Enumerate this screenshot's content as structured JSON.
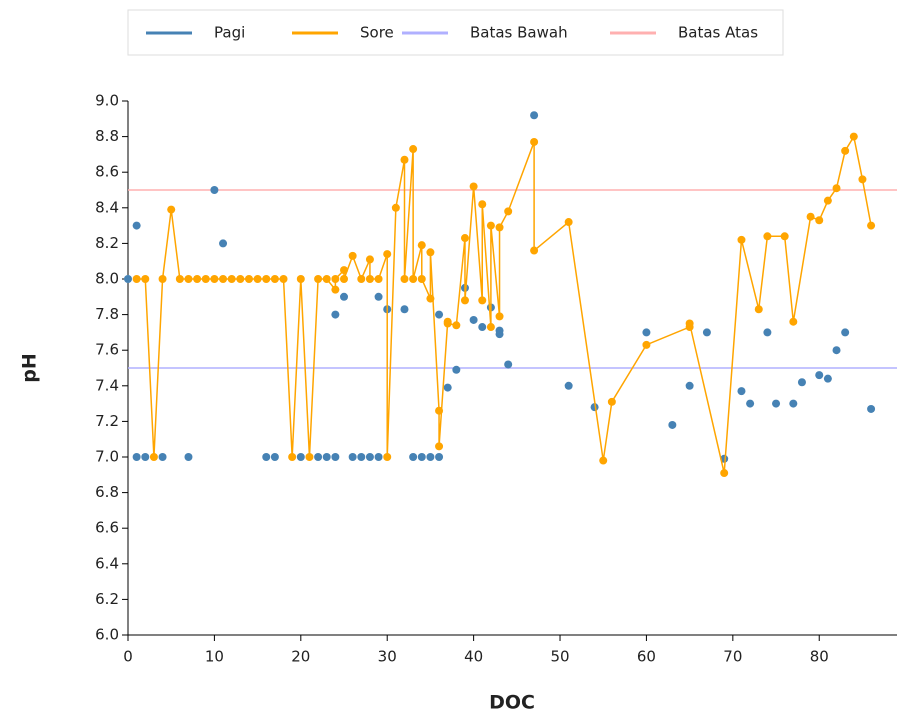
{
  "chart_data": {
    "type": "scatter",
    "x_label": "DOC",
    "y_label": "pH",
    "xlim": [
      0,
      89
    ],
    "ylim": [
      6.0,
      9.0
    ],
    "xticks": [
      0,
      10,
      20,
      30,
      40,
      50,
      60,
      70,
      80
    ],
    "yticks": [
      {
        "value": 6.0,
        "label": "6.0"
      },
      {
        "value": 6.2,
        "label": "6.2"
      },
      {
        "value": 6.4,
        "label": "6.4"
      },
      {
        "value": 6.6,
        "label": "6.6"
      },
      {
        "value": 6.8,
        "label": "6.8"
      },
      {
        "value": 7.0,
        "label": "7.0"
      },
      {
        "value": 7.2,
        "label": "7.2"
      },
      {
        "value": 7.4,
        "label": "7.4"
      },
      {
        "value": 7.6,
        "label": "7.6"
      },
      {
        "value": 7.8,
        "label": "7.8"
      },
      {
        "value": 8.0,
        "label": "8.0"
      },
      {
        "value": 8.2,
        "label": "8.2"
      },
      {
        "value": 8.4,
        "label": "8.4"
      },
      {
        "value": 8.6,
        "label": "8.6"
      },
      {
        "value": 8.8,
        "label": "8.8"
      },
      {
        "value": 9.0,
        "label": "9.0"
      }
    ],
    "grid": false,
    "legend": "top",
    "series": [
      {
        "name": "Pagi",
        "color": "#4682b4",
        "line": false,
        "x": [
          0,
          1,
          1,
          2,
          4,
          7,
          10,
          11,
          16,
          17,
          20,
          22,
          23,
          24,
          24,
          25,
          26,
          27,
          28,
          29,
          29,
          30,
          32,
          33,
          34,
          35,
          36,
          36,
          37,
          38,
          39,
          40,
          41,
          42,
          43,
          43,
          44,
          47,
          51,
          54,
          60,
          63,
          65,
          67,
          69,
          71,
          72,
          74,
          75,
          77,
          78,
          80,
          81,
          82,
          83,
          86
        ],
        "values": [
          8.0,
          8.3,
          7.0,
          7.0,
          7.0,
          7.0,
          8.5,
          8.2,
          7.0,
          7.0,
          7.0,
          7.0,
          7.0,
          7.0,
          7.8,
          7.9,
          7.0,
          7.0,
          7.0,
          7.0,
          7.9,
          7.83,
          7.83,
          7.0,
          7.0,
          7.0,
          7.0,
          7.8,
          7.39,
          7.49,
          7.95,
          7.77,
          7.73,
          7.84,
          7.69,
          7.71,
          7.52,
          8.92,
          7.4,
          7.28,
          7.7,
          7.18,
          7.4,
          7.7,
          6.99,
          7.37,
          7.3,
          7.7,
          7.3,
          7.3,
          7.42,
          7.46,
          7.44,
          7.6,
          7.7,
          7.27
        ]
      },
      {
        "name": "Sore",
        "color": "#ffa500",
        "line": true,
        "x": [
          1,
          2,
          3,
          4,
          5,
          6,
          7,
          8,
          9,
          10,
          11,
          12,
          13,
          14,
          15,
          16,
          17,
          18,
          19,
          20,
          21,
          22,
          23,
          24,
          24,
          25,
          25,
          26,
          27,
          28,
          28,
          29,
          30,
          30,
          31,
          32,
          32,
          33,
          33,
          34,
          34,
          35,
          35,
          36,
          36,
          37,
          37,
          38,
          39,
          39,
          40,
          41,
          41,
          42,
          42,
          43,
          43,
          44,
          47,
          47,
          51,
          55,
          56,
          60,
          65,
          65,
          69,
          71,
          73,
          74,
          76,
          77,
          79,
          80,
          81,
          82,
          83,
          84,
          85,
          86
        ],
        "values": [
          8.0,
          8.0,
          7.0,
          8.0,
          8.39,
          8.0,
          8.0,
          8.0,
          8.0,
          8.0,
          8.0,
          8.0,
          8.0,
          8.0,
          8.0,
          8.0,
          8.0,
          8.0,
          7.0,
          8.0,
          7.0,
          8.0,
          8.0,
          7.94,
          8.0,
          8.05,
          8.0,
          8.13,
          8.0,
          8.11,
          8.0,
          8.0,
          8.14,
          7.0,
          8.4,
          8.67,
          8.0,
          8.73,
          8.0,
          8.19,
          8.0,
          7.89,
          8.15,
          7.26,
          7.06,
          7.76,
          7.75,
          7.74,
          8.23,
          7.88,
          8.52,
          7.88,
          8.42,
          7.73,
          8.3,
          7.79,
          8.29,
          8.38,
          8.77,
          8.16,
          8.32,
          6.98,
          7.31,
          7.63,
          7.73,
          7.75,
          6.91,
          8.22,
          7.83,
          8.24,
          8.24,
          7.76,
          8.35,
          8.33,
          8.44,
          8.51,
          8.72,
          8.8,
          8.56,
          8.3
        ]
      },
      {
        "name": "Batas Bawah",
        "color": "#b0b0ff",
        "hline": 7.5
      },
      {
        "name": "Batas Atas",
        "color": "#ffb0b0",
        "hline": 8.5
      }
    ]
  }
}
